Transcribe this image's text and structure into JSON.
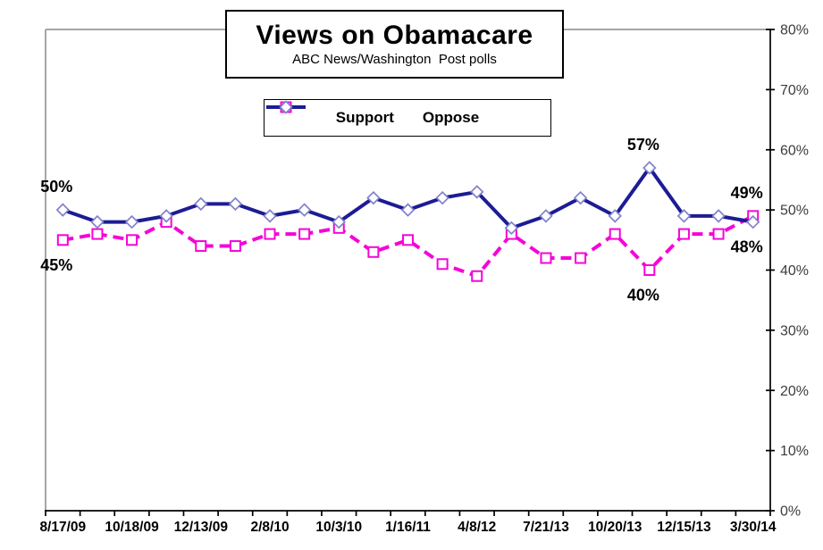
{
  "chart_data": {
    "type": "line",
    "title": "Views on Obamacare",
    "subtitle": "ABC News/Washington  Post polls",
    "grid": false,
    "legend_position": "top-center",
    "x_axis": {
      "tick_labels": [
        "8/17/09",
        "10/18/09",
        "12/13/09",
        "2/8/10",
        "10/3/10",
        "1/16/11",
        "4/8/12",
        "7/21/13",
        "10/20/13",
        "12/15/13",
        "3/30/14"
      ],
      "points_per_label": 2,
      "n_points": 21
    },
    "y_axis": {
      "min": 0,
      "max": 80,
      "step": 10,
      "side": "right",
      "tick_labels": [
        "0%",
        "10%",
        "20%",
        "30%",
        "40%",
        "50%",
        "60%",
        "70%",
        "80%"
      ]
    },
    "series": [
      {
        "name": "Support",
        "color": "#f405d8",
        "marker": "square",
        "marker_outline": "#f405d8",
        "line_style": "dashed",
        "values": [
          45,
          46,
          45,
          48,
          44,
          44,
          46,
          46,
          47,
          43,
          45,
          41,
          39,
          46,
          42,
          42,
          46,
          40,
          46,
          46,
          49
        ]
      },
      {
        "name": "Oppose",
        "color": "#1c1c94",
        "marker": "diamond",
        "marker_outline": "#8282cc",
        "line_style": "solid",
        "values": [
          50,
          48,
          48,
          49,
          51,
          51,
          49,
          50,
          48,
          52,
          50,
          52,
          53,
          47,
          49,
          52,
          49,
          57,
          49,
          49,
          48
        ]
      }
    ],
    "point_labels": [
      {
        "series": "Oppose",
        "point_index": 0,
        "text": "50%",
        "placement": "above"
      },
      {
        "series": "Support",
        "point_index": 0,
        "text": "45%",
        "placement": "below"
      },
      {
        "series": "Oppose",
        "point_index": 17,
        "text": "57%",
        "placement": "above"
      },
      {
        "series": "Support",
        "point_index": 17,
        "text": "40%",
        "placement": "below"
      },
      {
        "series": "Support",
        "point_index": 20,
        "text": "49%",
        "placement": "above"
      },
      {
        "series": "Oppose",
        "point_index": 20,
        "text": "48%",
        "placement": "below"
      }
    ],
    "colors": {
      "axis": "#000000",
      "frame": "#a6a6a6",
      "x_label": "#000000",
      "y_label": "#3c3c3c",
      "point_label": "#000000"
    }
  }
}
